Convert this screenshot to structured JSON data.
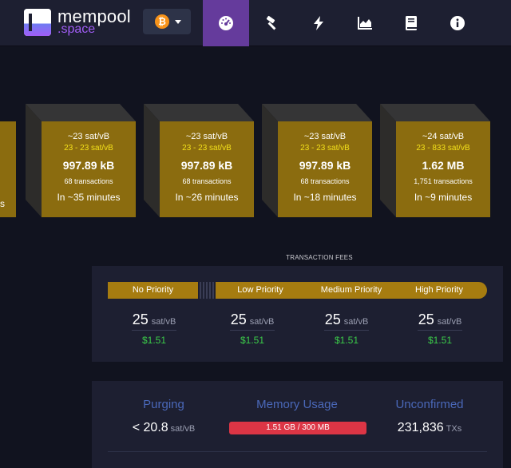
{
  "brand": {
    "name": "mempool",
    "tld": ".space"
  },
  "network": {
    "icon": "bitcoin-icon",
    "symbol": "₿"
  },
  "nav": [
    {
      "name": "dashboard",
      "icon": "gauge-icon",
      "active": true
    },
    {
      "name": "mining",
      "icon": "hammer-icon"
    },
    {
      "name": "lightning",
      "icon": "lightning-icon"
    },
    {
      "name": "graphs",
      "icon": "area-chart-icon"
    },
    {
      "name": "docs",
      "icon": "book-icon"
    },
    {
      "name": "about",
      "icon": "info-icon"
    }
  ],
  "blocks": [
    {
      "fee": "~23 sat/vB",
      "range": "23 - 23 sat/vB",
      "size": "997.89 kB",
      "txs": "68 transactions",
      "eta": "In ~35 minutes"
    },
    {
      "fee": "~23 sat/vB",
      "range": "23 - 23 sat/vB",
      "size": "997.89 kB",
      "txs": "68 transactions",
      "eta": "In ~26 minutes"
    },
    {
      "fee": "~23 sat/vB",
      "range": "23 - 23 sat/vB",
      "size": "997.89 kB",
      "txs": "68 transactions",
      "eta": "In ~18 minutes"
    },
    {
      "fee": "~24 sat/vB",
      "range": "23 - 833 sat/vB",
      "size": "1.62 MB",
      "txs": "1,751 transactions",
      "eta": "In ~9 minutes"
    }
  ],
  "partial_block": {
    "suffix": "s"
  },
  "fees": {
    "title": "TRANSACTION FEES",
    "priorities": [
      {
        "label": "No Priority",
        "value": "25",
        "unit": "sat/vB",
        "usd": "$1.51"
      },
      {
        "label": "Low Priority",
        "value": "25",
        "unit": "sat/vB",
        "usd": "$1.51"
      },
      {
        "label": "Medium Priority",
        "value": "25",
        "unit": "sat/vB",
        "usd": "$1.51"
      },
      {
        "label": "High Priority",
        "value": "25",
        "unit": "sat/vB",
        "usd": "$1.51"
      }
    ]
  },
  "mempool": {
    "purging": {
      "label": "Purging",
      "value": "< 20.8",
      "unit": "sat/vB"
    },
    "memory": {
      "label": "Memory Usage",
      "value": "1.51 GB / 300 MB"
    },
    "unconfirmed": {
      "label": "Unconfirmed",
      "value": "231,836",
      "unit": "TXs"
    }
  },
  "colors": {
    "accent": "#653b9c",
    "block_face": "#8b6c0f",
    "priority_bar": "#a67c10",
    "usd_green": "#3bcc49",
    "info_heading": "#4a68b9",
    "memory_bar": "#dc3545"
  }
}
